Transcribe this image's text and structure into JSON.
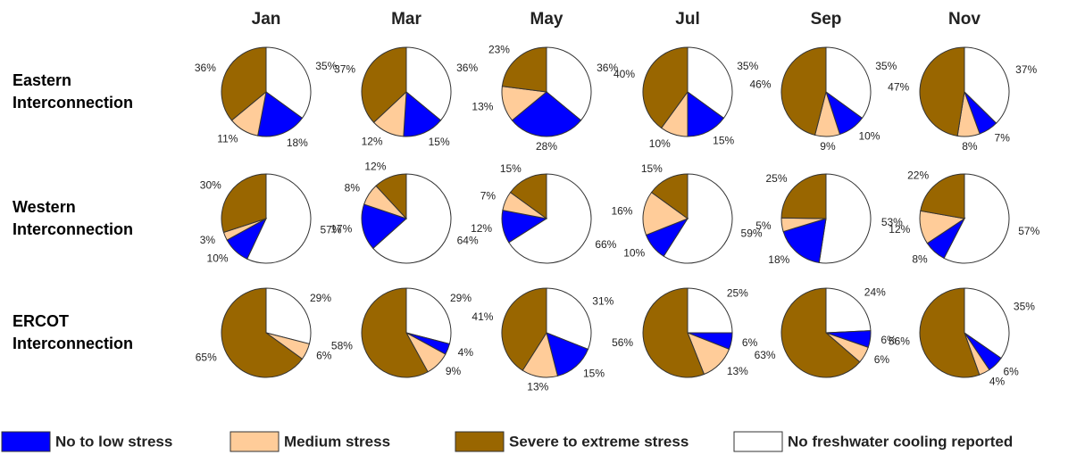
{
  "columns": [
    "Jan",
    "Mar",
    "May",
    "Jul",
    "Sep",
    "Nov"
  ],
  "rows": [
    "Eastern Interconnection",
    "Western Interconnection",
    "ERCOT Interconnection"
  ],
  "legend": {
    "labels": [
      "No to low stress",
      "Medium stress",
      "Severe to extreme stress",
      "No freshwater cooling reported"
    ],
    "colors": [
      "#0000ff",
      "#ffcc99",
      "#996600",
      "#ffffff"
    ]
  },
  "chart_data": [
    {
      "type": "pie",
      "values": [
        18,
        11,
        36,
        35
      ],
      "value_labels": [
        "18%",
        "11%",
        "36%",
        "35%"
      ]
    },
    {
      "type": "pie",
      "values": [
        15,
        12,
        37,
        36
      ],
      "value_labels": [
        "15%",
        "12%",
        "37%",
        "36%"
      ]
    },
    {
      "type": "pie",
      "values": [
        28,
        13,
        23,
        36
      ],
      "value_labels": [
        "28%",
        "13%",
        "23%",
        "36%"
      ]
    },
    {
      "type": "pie",
      "values": [
        15,
        10,
        40,
        35
      ],
      "value_labels": [
        "15%",
        "10%",
        "40%",
        "35%"
      ]
    },
    {
      "type": "pie",
      "values": [
        10,
        9,
        46,
        35
      ],
      "value_labels": [
        "10%",
        "9%",
        "46%",
        "35%"
      ]
    },
    {
      "type": "pie",
      "values": [
        7,
        8,
        47,
        37
      ],
      "value_labels": [
        "7%",
        "8%",
        "47%",
        "37%"
      ]
    },
    {
      "type": "pie",
      "values": [
        10,
        3,
        30,
        57
      ],
      "value_labels": [
        "10%",
        "3%",
        "30%",
        "57%"
      ]
    },
    {
      "type": "pie",
      "values": [
        17,
        8,
        12,
        64
      ],
      "value_labels": [
        "17%",
        "8%",
        "12%",
        "64%"
      ]
    },
    {
      "type": "pie",
      "values": [
        12,
        7,
        15,
        66
      ],
      "value_labels": [
        "12%",
        "7%",
        "15%",
        "66%"
      ]
    },
    {
      "type": "pie",
      "values": [
        10,
        16,
        15,
        59
      ],
      "value_labels": [
        "10%",
        "16%",
        "15%",
        "59%"
      ]
    },
    {
      "type": "pie",
      "values": [
        18,
        5,
        25,
        53
      ],
      "value_labels": [
        "18%",
        "5%",
        "25%",
        "53%"
      ]
    },
    {
      "type": "pie",
      "values": [
        8,
        12,
        22,
        57
      ],
      "value_labels": [
        "8%",
        "12%",
        "22%",
        "57%"
      ]
    },
    {
      "type": "pie",
      "values": [
        0,
        6,
        65,
        29
      ],
      "value_labels": [
        null,
        "6%",
        "65%",
        "29%"
      ]
    },
    {
      "type": "pie",
      "values": [
        4,
        9,
        58,
        29
      ],
      "value_labels": [
        "4%",
        "9%",
        "58%",
        "29%"
      ]
    },
    {
      "type": "pie",
      "values": [
        15,
        13,
        41,
        31
      ],
      "value_labels": [
        "15%",
        "13%",
        "41%",
        "31%"
      ]
    },
    {
      "type": "pie",
      "values": [
        6,
        13,
        56,
        25
      ],
      "value_labels": [
        "6%",
        "13%",
        "56%",
        "25%"
      ]
    },
    {
      "type": "pie",
      "values": [
        6,
        6,
        63,
        24
      ],
      "value_labels": [
        "6%",
        "6%",
        "63%",
        "24%"
      ]
    },
    {
      "type": "pie",
      "values": [
        6,
        4,
        56,
        35
      ],
      "value_labels": [
        "6%",
        "4%",
        "56%",
        "35%"
      ]
    }
  ]
}
